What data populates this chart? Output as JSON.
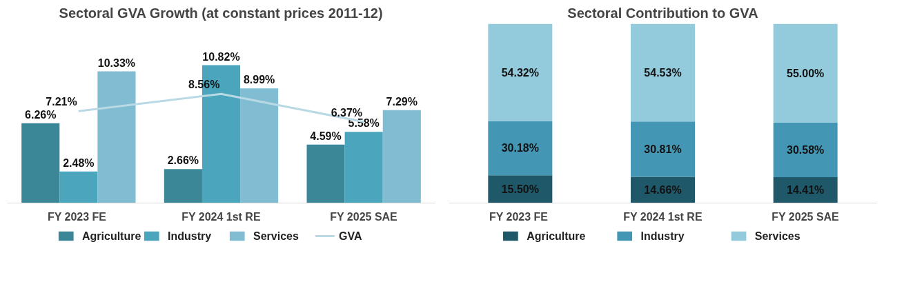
{
  "chart_data": [
    {
      "type": "bar",
      "title": "Sectoral GVA Growth\n(at constant prices 2011-12)",
      "categories": [
        "FY 2023  FE",
        "FY 2024 1st RE",
        "FY 2025 SAE"
      ],
      "grid": false,
      "legend": "bottom",
      "series": [
        {
          "name": "Agriculture",
          "color": "#3b8797",
          "values": [
            6.26,
            2.66,
            4.59
          ],
          "value_labels": [
            "6.26%",
            "2.66%",
            "4.59%"
          ]
        },
        {
          "name": "Industry",
          "color": "#4aa5bd",
          "values": [
            2.48,
            10.82,
            5.58
          ],
          "value_labels": [
            "2.48%",
            "10.82%",
            "5.58%"
          ]
        },
        {
          "name": "Services",
          "color": "#80bcd2",
          "values": [
            10.33,
            8.99,
            7.29
          ],
          "value_labels": [
            "10.33%",
            "8.99%",
            "7.29%"
          ]
        },
        {
          "name": "GVA",
          "type": "line",
          "color": "#b9d9e4",
          "values": [
            7.21,
            8.56,
            6.37
          ],
          "value_labels": [
            "7.21%",
            "8.56%",
            "6.37%"
          ]
        }
      ]
    },
    {
      "type": "bar",
      "title": "Sectoral Contribution to GVA",
      "categories": [
        "FY 2023  FE",
        "FY 2024 1st RE",
        "FY 2025 SAE"
      ],
      "stacked": true,
      "grid": false,
      "legend": "bottom",
      "series": [
        {
          "name": "Agriculture",
          "color": "#1f5868",
          "values": [
            15.5,
            14.66,
            14.41
          ],
          "value_labels": [
            "15.50%",
            "14.66%",
            "14.41%"
          ]
        },
        {
          "name": "Industry",
          "color": "#4497b4",
          "values": [
            30.18,
            30.81,
            30.58
          ],
          "value_labels": [
            "30.18%",
            "30.81%",
            "30.58%"
          ]
        },
        {
          "name": "Services",
          "color": "#93cbdc",
          "values": [
            54.32,
            54.53,
            55.0
          ],
          "value_labels": [
            "54.32%",
            "54.53%",
            "55.00%"
          ]
        }
      ]
    }
  ]
}
